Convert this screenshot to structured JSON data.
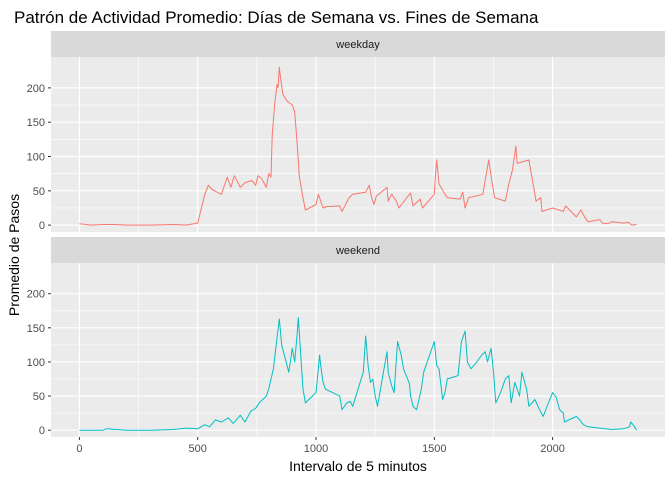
{
  "chart_data": {
    "type": "line",
    "title": "Patrón de Actividad Promedio: Días de Semana vs. Fines de Semana",
    "xlabel": "Intervalo de 5 minutos",
    "ylabel": "Promedio de Pasos",
    "xlim": [
      -120,
      2475
    ],
    "ylim": [
      -10,
      245
    ],
    "x_ticks": [
      0,
      500,
      1000,
      1500,
      2000
    ],
    "y_ticks": [
      0,
      50,
      100,
      150,
      200
    ],
    "grid": true,
    "facet_by": "day type",
    "series": [
      {
        "name": "weekday",
        "color": "#F8766D",
        "points": [
          [
            0,
            2
          ],
          [
            50,
            0
          ],
          [
            100,
            1
          ],
          [
            150,
            1
          ],
          [
            200,
            0
          ],
          [
            300,
            0
          ],
          [
            400,
            1
          ],
          [
            450,
            0
          ],
          [
            500,
            3
          ],
          [
            505,
            10
          ],
          [
            530,
            45
          ],
          [
            545,
            58
          ],
          [
            560,
            52
          ],
          [
            600,
            45
          ],
          [
            615,
            60
          ],
          [
            625,
            70
          ],
          [
            640,
            55
          ],
          [
            655,
            72
          ],
          [
            680,
            55
          ],
          [
            700,
            62
          ],
          [
            730,
            65
          ],
          [
            745,
            58
          ],
          [
            755,
            72
          ],
          [
            770,
            68
          ],
          [
            790,
            55
          ],
          [
            800,
            75
          ],
          [
            810,
            70
          ],
          [
            815,
            130
          ],
          [
            825,
            175
          ],
          [
            835,
            205
          ],
          [
            840,
            200
          ],
          [
            845,
            230
          ],
          [
            850,
            215
          ],
          [
            860,
            190
          ],
          [
            880,
            180
          ],
          [
            900,
            175
          ],
          [
            910,
            165
          ],
          [
            920,
            120
          ],
          [
            930,
            70
          ],
          [
            945,
            40
          ],
          [
            955,
            22
          ],
          [
            1000,
            30
          ],
          [
            1010,
            45
          ],
          [
            1030,
            25
          ],
          [
            1045,
            27
          ],
          [
            1100,
            28
          ],
          [
            1110,
            20
          ],
          [
            1140,
            40
          ],
          [
            1155,
            45
          ],
          [
            1210,
            48
          ],
          [
            1225,
            58
          ],
          [
            1235,
            40
          ],
          [
            1245,
            30
          ],
          [
            1255,
            42
          ],
          [
            1300,
            55
          ],
          [
            1305,
            35
          ],
          [
            1320,
            45
          ],
          [
            1340,
            35
          ],
          [
            1350,
            25
          ],
          [
            1400,
            47
          ],
          [
            1410,
            28
          ],
          [
            1440,
            38
          ],
          [
            1450,
            25
          ],
          [
            1500,
            45
          ],
          [
            1505,
            75
          ],
          [
            1510,
            95
          ],
          [
            1520,
            60
          ],
          [
            1545,
            45
          ],
          [
            1555,
            40
          ],
          [
            1610,
            38
          ],
          [
            1620,
            48
          ],
          [
            1630,
            25
          ],
          [
            1645,
            40
          ],
          [
            1705,
            45
          ],
          [
            1730,
            95
          ],
          [
            1745,
            60
          ],
          [
            1755,
            40
          ],
          [
            1800,
            35
          ],
          [
            1815,
            60
          ],
          [
            1830,
            80
          ],
          [
            1845,
            115
          ],
          [
            1850,
            90
          ],
          [
            1900,
            95
          ],
          [
            1915,
            65
          ],
          [
            1925,
            45
          ],
          [
            1930,
            35
          ],
          [
            1950,
            40
          ],
          [
            1955,
            20
          ],
          [
            2000,
            25
          ],
          [
            2045,
            20
          ],
          [
            2055,
            28
          ],
          [
            2100,
            12
          ],
          [
            2120,
            22
          ],
          [
            2135,
            12
          ],
          [
            2150,
            5
          ],
          [
            2200,
            8
          ],
          [
            2210,
            3
          ],
          [
            2235,
            2
          ],
          [
            2250,
            5
          ],
          [
            2300,
            3
          ],
          [
            2320,
            4
          ],
          [
            2335,
            0
          ],
          [
            2355,
            1
          ]
        ]
      },
      {
        "name": "weekend",
        "color": "#00BFC4",
        "points": [
          [
            0,
            0
          ],
          [
            100,
            0
          ],
          [
            115,
            2
          ],
          [
            200,
            0
          ],
          [
            300,
            0
          ],
          [
            400,
            1
          ],
          [
            450,
            3
          ],
          [
            500,
            2
          ],
          [
            530,
            8
          ],
          [
            550,
            5
          ],
          [
            575,
            15
          ],
          [
            600,
            12
          ],
          [
            630,
            18
          ],
          [
            650,
            10
          ],
          [
            680,
            22
          ],
          [
            700,
            12
          ],
          [
            725,
            28
          ],
          [
            745,
            32
          ],
          [
            760,
            40
          ],
          [
            790,
            50
          ],
          [
            800,
            60
          ],
          [
            820,
            90
          ],
          [
            830,
            120
          ],
          [
            845,
            163
          ],
          [
            855,
            125
          ],
          [
            885,
            85
          ],
          [
            900,
            120
          ],
          [
            910,
            100
          ],
          [
            920,
            140
          ],
          [
            925,
            165
          ],
          [
            945,
            60
          ],
          [
            955,
            40
          ],
          [
            1000,
            55
          ],
          [
            1015,
            110
          ],
          [
            1020,
            95
          ],
          [
            1030,
            70
          ],
          [
            1040,
            60
          ],
          [
            1100,
            50
          ],
          [
            1110,
            30
          ],
          [
            1130,
            40
          ],
          [
            1145,
            42
          ],
          [
            1155,
            35
          ],
          [
            1200,
            85
          ],
          [
            1210,
            138
          ],
          [
            1220,
            95
          ],
          [
            1230,
            70
          ],
          [
            1240,
            75
          ],
          [
            1250,
            50
          ],
          [
            1260,
            35
          ],
          [
            1300,
            115
          ],
          [
            1305,
            85
          ],
          [
            1320,
            65
          ],
          [
            1330,
            55
          ],
          [
            1345,
            130
          ],
          [
            1360,
            110
          ],
          [
            1370,
            90
          ],
          [
            1395,
            68
          ],
          [
            1400,
            50
          ],
          [
            1410,
            35
          ],
          [
            1425,
            30
          ],
          [
            1445,
            60
          ],
          [
            1455,
            85
          ],
          [
            1500,
            130
          ],
          [
            1510,
            95
          ],
          [
            1520,
            90
          ],
          [
            1535,
            45
          ],
          [
            1545,
            55
          ],
          [
            1555,
            75
          ],
          [
            1600,
            80
          ],
          [
            1615,
            130
          ],
          [
            1630,
            145
          ],
          [
            1640,
            100
          ],
          [
            1655,
            90
          ],
          [
            1680,
            100
          ],
          [
            1700,
            110
          ],
          [
            1715,
            115
          ],
          [
            1725,
            100
          ],
          [
            1740,
            120
          ],
          [
            1750,
            85
          ],
          [
            1760,
            40
          ],
          [
            1780,
            55
          ],
          [
            1800,
            75
          ],
          [
            1815,
            80
          ],
          [
            1825,
            40
          ],
          [
            1840,
            70
          ],
          [
            1860,
            50
          ],
          [
            1870,
            85
          ],
          [
            1890,
            60
          ],
          [
            1900,
            35
          ],
          [
            1925,
            45
          ],
          [
            1945,
            30
          ],
          [
            1960,
            20
          ],
          [
            2000,
            55
          ],
          [
            2015,
            48
          ],
          [
            2030,
            30
          ],
          [
            2045,
            25
          ],
          [
            2050,
            12
          ],
          [
            2100,
            20
          ],
          [
            2115,
            15
          ],
          [
            2130,
            8
          ],
          [
            2150,
            5
          ],
          [
            2200,
            3
          ],
          [
            2250,
            1
          ],
          [
            2300,
            2
          ],
          [
            2325,
            5
          ],
          [
            2330,
            12
          ],
          [
            2340,
            8
          ],
          [
            2355,
            0
          ]
        ]
      }
    ]
  }
}
